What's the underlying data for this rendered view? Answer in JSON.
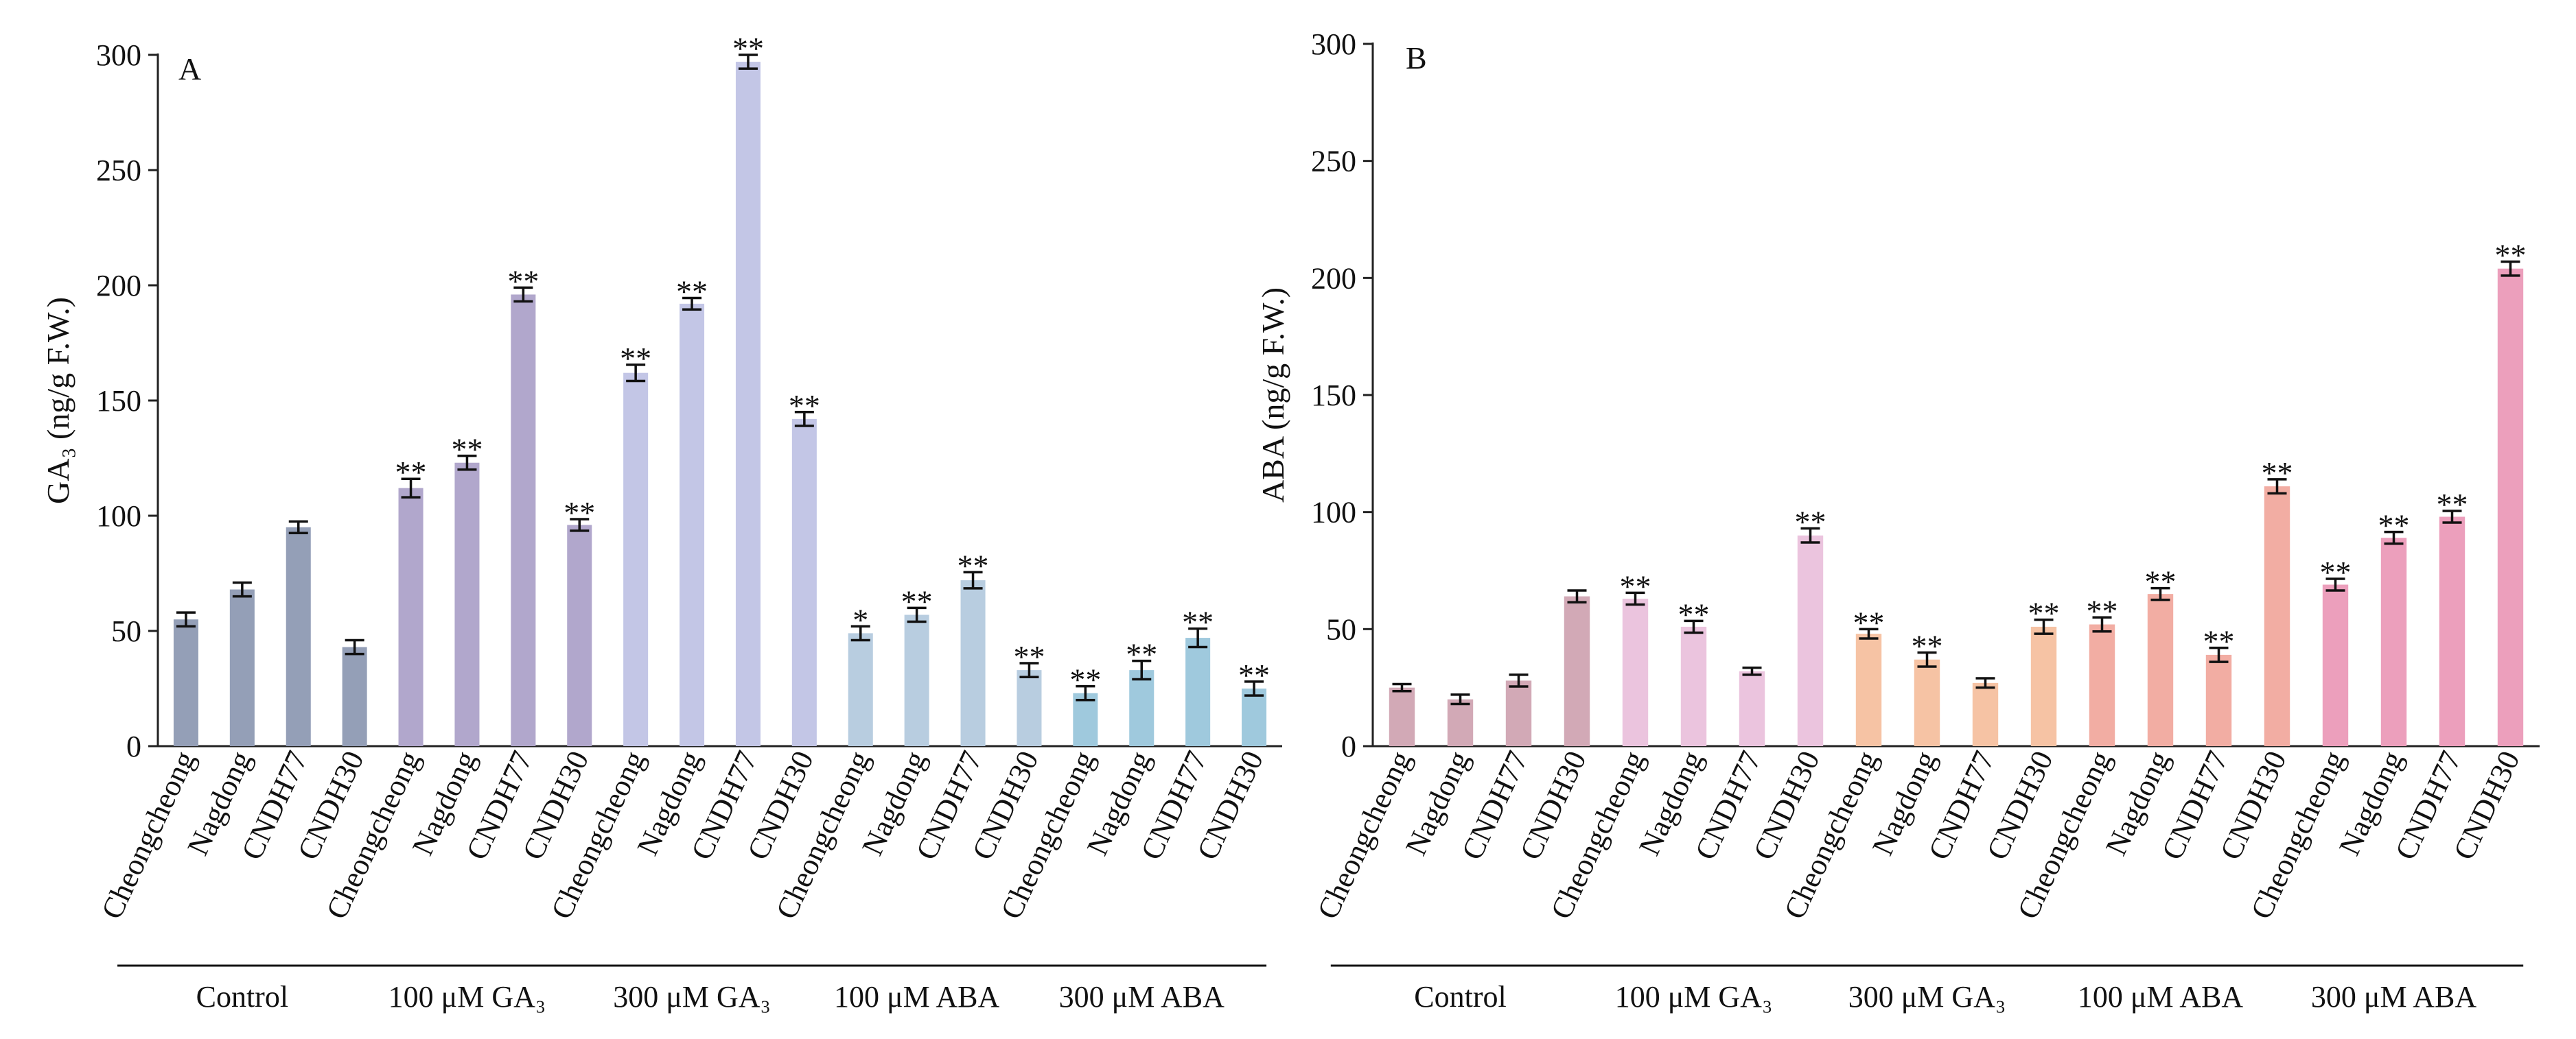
{
  "chart_data": [
    {
      "type": "bar",
      "panel_label": "A",
      "ylabel": "GA₃ (ng/g F.W.)",
      "ylim": [
        0,
        300
      ],
      "yticks": [
        "0",
        "50",
        "100",
        "150",
        "200",
        "250",
        "300"
      ],
      "categories": [
        "Cheongcheong",
        "Nagdong",
        "CNDH77",
        "CNDH30",
        "Cheongcheong",
        "Nagdong",
        "CNDH77",
        "CNDH30",
        "Cheongcheong",
        "Nagdong",
        "CNDH77",
        "CNDH30",
        "Cheongcheong",
        "Nagdong",
        "CNDH77",
        "CNDH30",
        "Cheongcheong",
        "Nagdong",
        "CNDH77",
        "CNDH30"
      ],
      "values": [
        55,
        68,
        95,
        43,
        112,
        123,
        196,
        96,
        162,
        192,
        297,
        142,
        49,
        57,
        72,
        33,
        23,
        33,
        47,
        25
      ],
      "errors": [
        3,
        3,
        2.5,
        3,
        4,
        3,
        3,
        2.5,
        3.5,
        2.5,
        3,
        3,
        3,
        3,
        3.5,
        3,
        3,
        4,
        4,
        3
      ],
      "significance": [
        "",
        "",
        "",
        "",
        "**",
        "**",
        "**",
        "**",
        "**",
        "**",
        "**",
        "**",
        "*",
        "**",
        "**",
        "**",
        "**",
        "**",
        "**",
        "**"
      ],
      "colors": [
        "#949fb7",
        "#949fb7",
        "#949fb7",
        "#949fb7",
        "#b1a7cc",
        "#b1a7cc",
        "#b1a7cc",
        "#b1a7cc",
        "#c3c6e6",
        "#c3c6e6",
        "#c3c6e6",
        "#c3c6e6",
        "#b8cde0",
        "#b8cde0",
        "#b8cde0",
        "#b8cde0",
        "#9fc9dd",
        "#9fc9dd",
        "#9fc9dd",
        "#9fc9dd"
      ],
      "groups": [
        "Control",
        "100 μM GA₃",
        "300 μM GA₃",
        "100 μM ABA",
        "300 μM ABA"
      ]
    },
    {
      "type": "bar",
      "panel_label": "B",
      "ylabel": "ABA (ng/g F.W.)",
      "ylim": [
        0,
        300
      ],
      "yticks": [
        "0",
        "50",
        "100",
        "150",
        "200",
        "250",
        "300"
      ],
      "categories": [
        "Cheongcheong",
        "Nagdong",
        "CNDH77",
        "CNDH30",
        "Cheongcheong",
        "Nagdong",
        "CNDH77",
        "CNDH30",
        "Cheongcheong",
        "Nagdong",
        "CNDH77",
        "CNDH30",
        "Cheongcheong",
        "Nagdong",
        "CNDH77",
        "CNDH30",
        "Cheongcheong",
        "Nagdong",
        "CNDH77",
        "CNDH30"
      ],
      "values": [
        25,
        20,
        28,
        64,
        63,
        51,
        32,
        90,
        48,
        37,
        27,
        51,
        52,
        65,
        39,
        111,
        69,
        89,
        98,
        204
      ],
      "errors": [
        1.5,
        2,
        2.5,
        2.5,
        2.5,
        2.5,
        1.5,
        3,
        2,
        3,
        2,
        3,
        3,
        2.5,
        3,
        3,
        2.5,
        2.5,
        2.5,
        3
      ],
      "significance": [
        "",
        "",
        "",
        "",
        "**",
        "**",
        "",
        "**",
        "**",
        "**",
        "",
        "**",
        "**",
        "**",
        "**",
        "**",
        "**",
        "**",
        "**",
        "**"
      ],
      "colors": [
        "#d2a9b6",
        "#d2a9b6",
        "#d2a9b6",
        "#d2a9b6",
        "#ebc4de",
        "#ebc4de",
        "#ebc4de",
        "#ebc4de",
        "#f6c3a4",
        "#f6c3a4",
        "#f6c3a4",
        "#f6c3a4",
        "#f2ada3",
        "#f2ada3",
        "#f2ada3",
        "#f2ada3",
        "#ec9fbc",
        "#ec9fbc",
        "#ec9fbc",
        "#ec9fbc"
      ],
      "groups": [
        "Control",
        "100 μM GA₃",
        "300 μM GA₃",
        "100 μM ABA",
        "300 μM ABA"
      ]
    }
  ]
}
